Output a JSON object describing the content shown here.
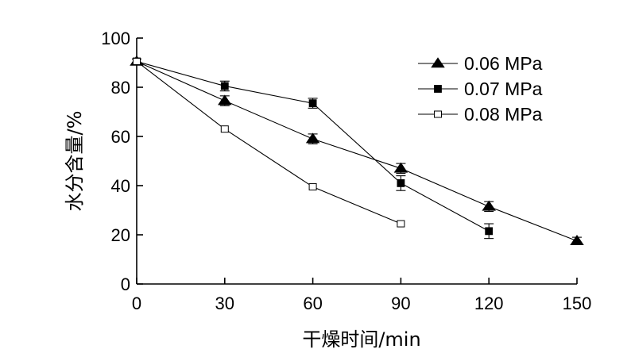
{
  "chart_data": {
    "type": "line",
    "xlabel": "干燥时间/min",
    "ylabel": "水分含量/%",
    "xlim": [
      0,
      150
    ],
    "ylim": [
      0,
      100
    ],
    "xticks": [
      0,
      30,
      60,
      90,
      120,
      150
    ],
    "yticks": [
      0,
      20,
      40,
      60,
      80,
      100
    ],
    "grid": false,
    "legend_position": "top-right",
    "series": [
      {
        "name": "0.06 MPa",
        "marker": "filled-triangle",
        "x": [
          0,
          30,
          60,
          90,
          120,
          150
        ],
        "y": [
          90.5,
          74.5,
          59,
          47,
          31.5,
          17.5
        ],
        "error": [
          1.0,
          2.0,
          2.0,
          2.0,
          2.0,
          1.5
        ]
      },
      {
        "name": "0.07 MPa",
        "marker": "filled-square",
        "x": [
          0,
          30,
          60,
          90,
          120
        ],
        "y": [
          90.5,
          80.5,
          73.5,
          41,
          21.5
        ],
        "error": [
          1.0,
          2.0,
          2.0,
          3.0,
          3.0
        ]
      },
      {
        "name": "0.08 MPa",
        "marker": "open-square",
        "x": [
          0,
          30,
          60,
          90
        ],
        "y": [
          90.5,
          63,
          39.5,
          24.5
        ],
        "error": [
          0,
          0,
          0,
          0
        ]
      }
    ]
  }
}
